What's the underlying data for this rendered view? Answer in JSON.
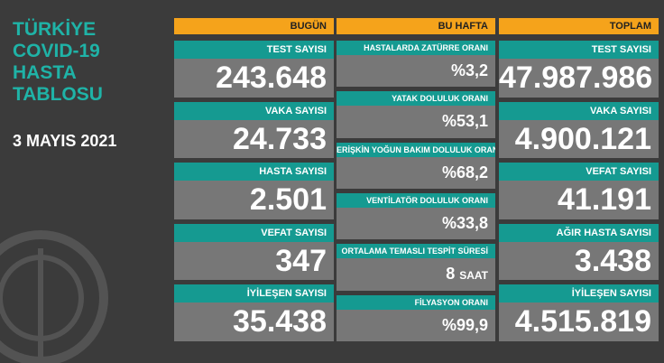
{
  "title": [
    "TÜRKİYE",
    "COVID-19",
    "HASTA",
    "TABLOSU"
  ],
  "date": "3 MAYIS 2021",
  "columns": [
    {
      "header": "BUGÜN",
      "cells": [
        {
          "label": "TEST SAYISI",
          "value": "243.648"
        },
        {
          "label": "VAKA SAYISI",
          "value": "24.733"
        },
        {
          "label": "HASTA SAYISI",
          "value": "2.501"
        },
        {
          "label": "VEFAT SAYISI",
          "value": "347"
        },
        {
          "label": "İYİLEŞEN SAYISI",
          "value": "35.438"
        }
      ]
    },
    {
      "header": "BU HAFTA",
      "cells": [
        {
          "label": "HASTALARDA ZATÜRRE ORANI",
          "value": "%3,2"
        },
        {
          "label": "YATAK DOLULUK ORANI",
          "value": "%53,1"
        },
        {
          "label": "ERİŞKİN YOĞUN BAKIM DOLULUK ORANI",
          "value": "%68,2"
        },
        {
          "label": "VENTİLATÖR DOLULUK ORANI",
          "value": "%33,8"
        },
        {
          "label": "ORTALAMA TEMASLI TESPİT SÜRESİ",
          "value": "8",
          "unit": "SAAT"
        },
        {
          "label": "FİLYASYON ORANI",
          "value": "%99,9"
        }
      ]
    },
    {
      "header": "TOPLAM",
      "cells": [
        {
          "label": "TEST SAYISI",
          "value": "47.987.986"
        },
        {
          "label": "VAKA SAYISI",
          "value": "4.900.121"
        },
        {
          "label": "VEFAT SAYISI",
          "value": "41.191"
        },
        {
          "label": "AĞIR HASTA SAYISI",
          "value": "3.438"
        },
        {
          "label": "İYİLEŞEN SAYISI",
          "value": "4.515.819"
        }
      ]
    }
  ]
}
